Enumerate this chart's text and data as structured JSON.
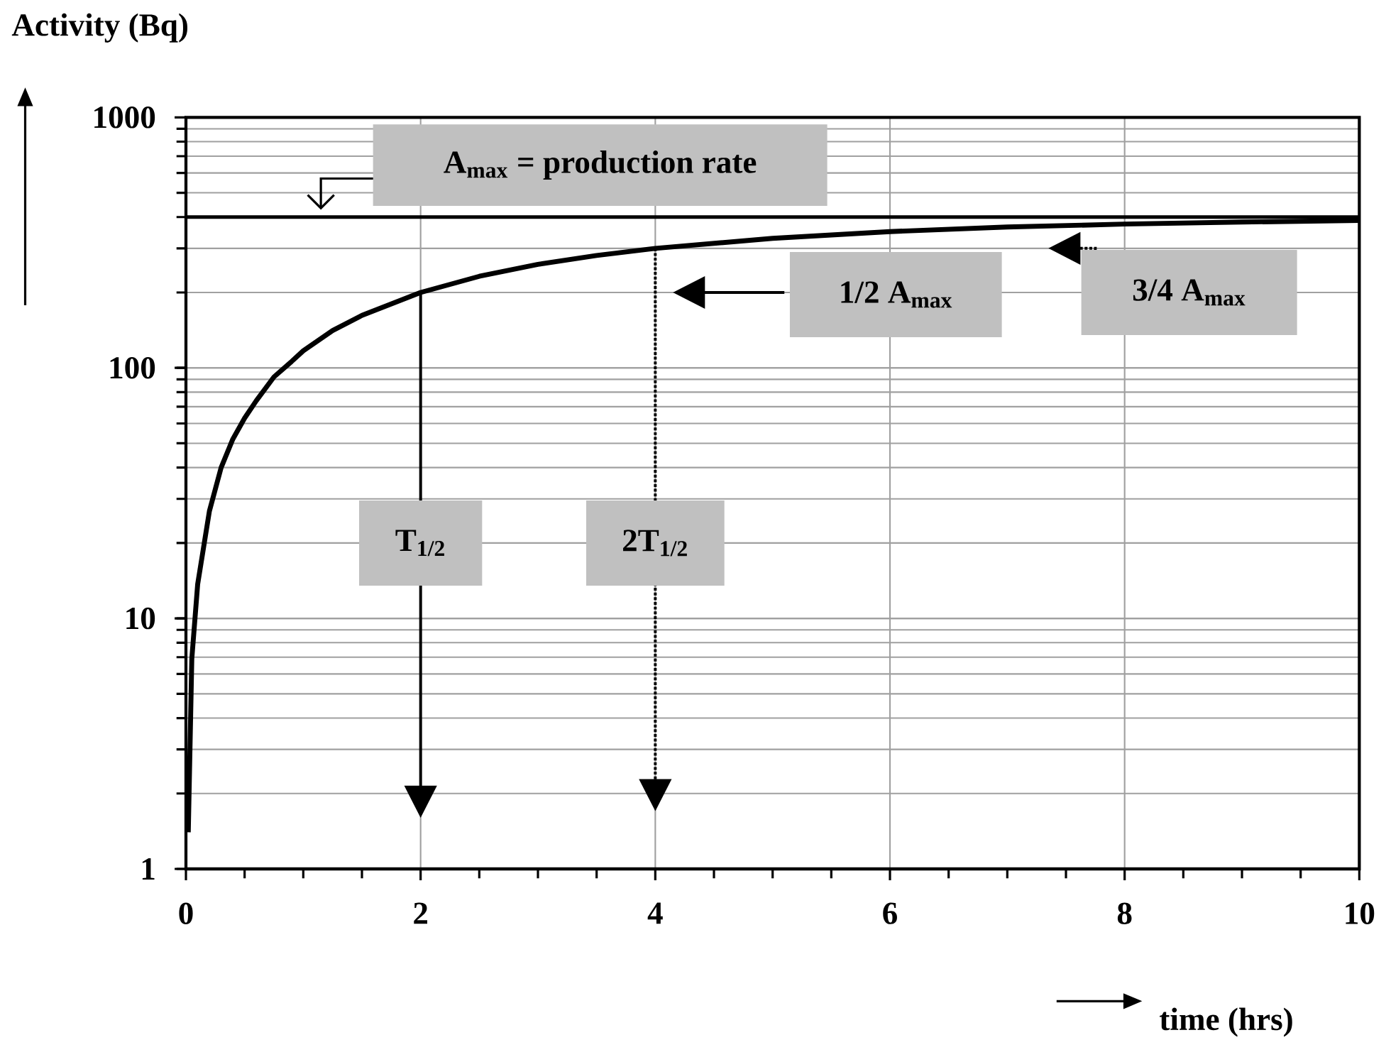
{
  "chart_data": {
    "type": "line",
    "xlabel": "time (hrs)",
    "ylabel": "Activity (Bq)",
    "x": [
      0.02,
      0.05,
      0.1,
      0.2,
      0.3,
      0.4,
      0.5,
      0.6,
      0.75,
      0.9,
      1,
      1.25,
      1.5,
      2,
      2.5,
      3,
      3.5,
      4,
      5,
      6,
      7,
      8,
      9,
      10
    ],
    "values": [
      1.4,
      6.9,
      13.7,
      26.8,
      40,
      52,
      63,
      74,
      92,
      106,
      117,
      141,
      162,
      200,
      232,
      259,
      281,
      300,
      329,
      350,
      365,
      375,
      382,
      388
    ],
    "color": "#000000",
    "log": "y",
    "xlim": [
      0,
      10
    ],
    "ylim": [
      1,
      1000
    ],
    "xticks": [
      0,
      2,
      4,
      6,
      8,
      10
    ],
    "yticks": [
      1,
      10,
      100,
      1000
    ],
    "grid": true,
    "ref_lines": [
      {
        "axis": "y",
        "value": 400,
        "label": "A$_{max}$ = production rate",
        "color": "#000000"
      }
    ],
    "annotations": [
      "T$_{1/2}$",
      "2T$_{1/2}$",
      "1/2 A$_{max}$",
      "3/4 A$_{max}$"
    ]
  }
}
